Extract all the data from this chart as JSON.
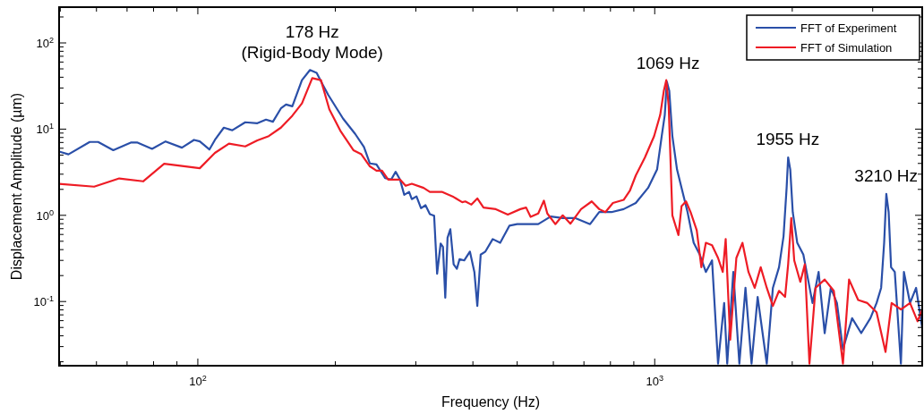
{
  "chart_data": {
    "type": "line",
    "xlabel": "Frequency (Hz)",
    "ylabel": "Displacement Amplitude (µm)",
    "log": "xy",
    "grid": false,
    "legend": "top right",
    "line_style": "solid",
    "marker": "none",
    "xlim": [
      49.7,
      3850
    ],
    "ylim": [
      0.018,
      260
    ],
    "xticks": [
      {
        "value": 50,
        "label": null
      },
      {
        "value": 60,
        "label": null
      },
      {
        "value": 70,
        "label": null
      },
      {
        "value": 80,
        "label": null
      },
      {
        "value": 90,
        "label": null
      },
      {
        "value": 100,
        "label": "10$^{2}$"
      },
      {
        "value": 200,
        "label": null
      },
      {
        "value": 300,
        "label": null
      },
      {
        "value": 400,
        "label": null
      },
      {
        "value": 500,
        "label": null
      },
      {
        "value": 600,
        "label": null
      },
      {
        "value": 700,
        "label": null
      },
      {
        "value": 800,
        "label": null
      },
      {
        "value": 900,
        "label": null
      },
      {
        "value": 1000,
        "label": "10$^{3}$"
      },
      {
        "value": 2000,
        "label": null
      },
      {
        "value": 3000,
        "label": null
      }
    ],
    "yticks": [
      {
        "value": 0.02,
        "label": null
      },
      {
        "value": 0.03,
        "label": null
      },
      {
        "value": 0.04,
        "label": null
      },
      {
        "value": 0.05,
        "label": null
      },
      {
        "value": 0.06,
        "label": null
      },
      {
        "value": 0.07,
        "label": null
      },
      {
        "value": 0.08,
        "label": null
      },
      {
        "value": 0.09,
        "label": null
      },
      {
        "value": 0.1,
        "label": "10$^{-1}$"
      },
      {
        "value": 0.2,
        "label": null
      },
      {
        "value": 0.3,
        "label": null
      },
      {
        "value": 0.4,
        "label": null
      },
      {
        "value": 0.5,
        "label": null
      },
      {
        "value": 0.6,
        "label": null
      },
      {
        "value": 0.7,
        "label": null
      },
      {
        "value": 0.8,
        "label": null
      },
      {
        "value": 0.9,
        "label": null
      },
      {
        "value": 1,
        "label": "10$^{0}$"
      },
      {
        "value": 2,
        "label": null
      },
      {
        "value": 3,
        "label": null
      },
      {
        "value": 4,
        "label": null
      },
      {
        "value": 5,
        "label": null
      },
      {
        "value": 6,
        "label": null
      },
      {
        "value": 7,
        "label": null
      },
      {
        "value": 8,
        "label": null
      },
      {
        "value": 9,
        "label": null
      },
      {
        "value": 10,
        "label": "10$^{1}$"
      },
      {
        "value": 20,
        "label": null
      },
      {
        "value": 30,
        "label": null
      },
      {
        "value": 40,
        "label": null
      },
      {
        "value": 50,
        "label": null
      },
      {
        "value": 60,
        "label": null
      },
      {
        "value": 70,
        "label": null
      },
      {
        "value": 80,
        "label": null
      },
      {
        "value": 90,
        "label": null
      },
      {
        "value": 100,
        "label": "10$^{2}$"
      },
      {
        "value": 200,
        "label": null
      }
    ],
    "annotations": [
      {
        "text": "178 Hz\n(Rigid-Body Mode)",
        "x": 178,
        "y": 48
      },
      {
        "text": "1069 Hz",
        "x": 1069,
        "y": 36
      },
      {
        "text": "1955 Hz",
        "x": 1955,
        "y": 4.7
      },
      {
        "text": "3210 Hz",
        "x": 3210,
        "y": 1.77
      }
    ],
    "series": [
      {
        "name": "FFT of Experiment",
        "color": "#2a4fa8",
        "x": [
          49.7,
          52.1,
          58.0,
          60.5,
          65.3,
          71.5,
          73.6,
          79.4,
          85.0,
          92.3,
          98.1,
          101,
          106,
          109,
          114,
          119,
          127,
          135,
          141,
          146,
          152,
          156,
          161,
          169,
          176,
          182,
          187,
          193,
          208,
          221,
          231,
          238,
          246,
          251,
          257,
          265,
          271,
          277,
          283,
          290,
          294,
          301,
          308,
          315,
          322,
          329,
          334,
          340,
          344,
          348,
          352,
          357,
          363,
          369,
          374,
          383,
          394,
          403,
          409,
          416,
          426,
          442,
          459,
          481,
          500,
          523,
          556,
          592,
          629,
          669,
          722,
          756,
          804,
          855,
          909,
          967,
          1012,
          1036,
          1052,
          1063,
          1076,
          1093,
          1119,
          1145,
          1180,
          1217,
          1255,
          1294,
          1335,
          1376,
          1419,
          1441,
          1486,
          1532,
          1580,
          1629,
          1680,
          1759,
          1814,
          1871,
          1914,
          1944,
          1959,
          1980,
          2005,
          2051,
          2115,
          2215,
          2284,
          2355,
          2429,
          2505,
          2582,
          2704,
          2831,
          2965,
          3059,
          3130,
          3178,
          3213,
          3251,
          3291,
          3353,
          3458,
          3511,
          3621,
          3733,
          3849
        ],
        "values": [
          5.5,
          5.1,
          7.1,
          7.1,
          5.7,
          7.0,
          7.0,
          5.9,
          7.2,
          6.1,
          7.5,
          7.2,
          5.8,
          7.5,
          10.4,
          9.7,
          12.0,
          11.7,
          12.9,
          12.2,
          17.4,
          19.3,
          18.4,
          37,
          48.5,
          45,
          34,
          24.9,
          13.2,
          8.8,
          6.2,
          4.0,
          3.9,
          3.3,
          2.7,
          2.6,
          3.2,
          2.6,
          1.73,
          1.87,
          1.54,
          1.66,
          1.21,
          1.31,
          1.03,
          0.99,
          0.21,
          0.47,
          0.43,
          0.111,
          0.55,
          0.69,
          0.27,
          0.24,
          0.31,
          0.3,
          0.38,
          0.22,
          0.089,
          0.35,
          0.38,
          0.53,
          0.48,
          0.76,
          0.79,
          0.79,
          0.79,
          0.97,
          0.93,
          0.93,
          0.79,
          1.09,
          1.09,
          1.18,
          1.39,
          2.08,
          3.4,
          8.3,
          14.6,
          35.5,
          27.9,
          8.3,
          3.4,
          2.08,
          1.09,
          0.48,
          0.35,
          0.22,
          0.3,
          0.019,
          0.096,
          0.019,
          0.22,
          0.019,
          0.144,
          0.019,
          0.113,
          0.019,
          0.144,
          0.25,
          0.57,
          2.08,
          4.7,
          3.4,
          1.09,
          0.48,
          0.35,
          0.096,
          0.22,
          0.043,
          0.144,
          0.096,
          0.028,
          0.064,
          0.043,
          0.064,
          0.096,
          0.144,
          0.48,
          1.77,
          1.09,
          0.25,
          0.22,
          0.019,
          0.22,
          0.096,
          0.144,
          0.05
        ]
      },
      {
        "name": "FFT of Simulation",
        "color": "#ee1c25",
        "x": [
          49.7,
          59.3,
          67.3,
          75.9,
          84.4,
          101,
          109,
          117,
          127,
          135,
          143,
          152,
          161,
          169,
          178,
          186,
          194,
          205,
          219,
          228,
          238,
          246,
          253,
          261,
          277,
          285,
          294,
          312,
          322,
          342,
          363,
          379,
          385,
          397,
          409,
          422,
          449,
          477,
          508,
          523,
          535,
          556,
          572,
          582,
          606,
          629,
          654,
          690,
          728,
          756,
          780,
          810,
          855,
          882,
          909,
          952,
          997,
          1028,
          1047,
          1060,
          1073,
          1093,
          1127,
          1145,
          1171,
          1198,
          1236,
          1265,
          1294,
          1335,
          1376,
          1409,
          1430,
          1463,
          1509,
          1556,
          1604,
          1655,
          1706,
          1759,
          1814,
          1871,
          1929,
          1959,
          1990,
          2020,
          2083,
          2131,
          2181,
          2249,
          2355,
          2466,
          2582,
          2663,
          2788,
          2920,
          3059,
          3200,
          3300,
          3458,
          3621,
          3761,
          3849
        ],
        "values": [
          2.32,
          2.15,
          2.68,
          2.48,
          3.96,
          3.52,
          5.3,
          6.8,
          6.3,
          7.4,
          8.3,
          10.4,
          14.3,
          19.9,
          39,
          37,
          17.0,
          9.6,
          5.7,
          5.1,
          3.7,
          3.3,
          3.3,
          2.6,
          2.6,
          2.2,
          2.32,
          2.08,
          1.87,
          1.87,
          1.63,
          1.42,
          1.45,
          1.33,
          1.57,
          1.23,
          1.18,
          1.02,
          1.18,
          1.23,
          0.96,
          1.05,
          1.48,
          1.05,
          0.79,
          1.0,
          0.8,
          1.18,
          1.45,
          1.18,
          1.09,
          1.39,
          1.51,
          1.92,
          2.9,
          4.7,
          8.3,
          14.6,
          27.8,
          37,
          18.6,
          1.0,
          0.59,
          1.28,
          1.45,
          1.09,
          0.67,
          0.25,
          0.48,
          0.45,
          0.32,
          0.22,
          0.53,
          0.036,
          0.32,
          0.48,
          0.22,
          0.144,
          0.25,
          0.144,
          0.089,
          0.133,
          0.113,
          0.27,
          0.93,
          0.3,
          0.169,
          0.27,
          0.019,
          0.144,
          0.18,
          0.133,
          0.019,
          0.18,
          0.104,
          0.096,
          0.075,
          0.026,
          0.096,
          0.081,
          0.096,
          0.059,
          0.081
        ]
      }
    ]
  }
}
